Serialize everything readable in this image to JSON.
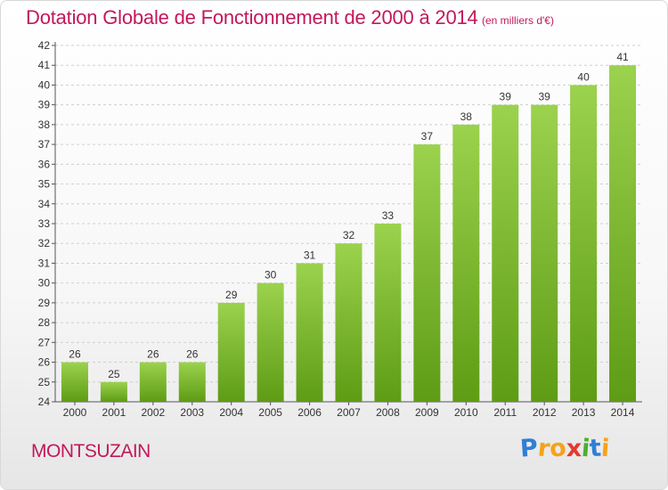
{
  "chart_data": {
    "type": "bar",
    "title": "Dotation Globale de Fonctionnement de 2000 à 2014",
    "subtitle": "(en milliers d'€)",
    "categories": [
      "2000",
      "2001",
      "2002",
      "2003",
      "2004",
      "2005",
      "2006",
      "2007",
      "2008",
      "2009",
      "2010",
      "2011",
      "2012",
      "2013",
      "2014"
    ],
    "values": [
      26,
      25,
      26,
      26,
      29,
      30,
      31,
      32,
      33,
      37,
      38,
      39,
      39,
      40,
      41
    ],
    "ylim": [
      24,
      42
    ],
    "yticks": [
      24,
      25,
      26,
      27,
      28,
      29,
      30,
      31,
      32,
      33,
      34,
      35,
      36,
      37,
      38,
      39,
      40,
      41,
      42
    ],
    "xlabel": "",
    "ylabel": "",
    "grid": true,
    "bar_color_top": "#9bd24e",
    "bar_color_bottom": "#5e9c15"
  },
  "commune": "MONTSUZAIN",
  "logo": {
    "text": "Proxiti",
    "letters": [
      "P",
      "r",
      "o",
      "x",
      "i",
      "t",
      "i"
    ],
    "colors": [
      "#2f7fd6",
      "#f7a21b",
      "#f7a21b",
      "#e33b2e",
      "#4caf2f",
      "#2f7fd6",
      "#f7a21b"
    ]
  },
  "accent_color": "#c2185b"
}
